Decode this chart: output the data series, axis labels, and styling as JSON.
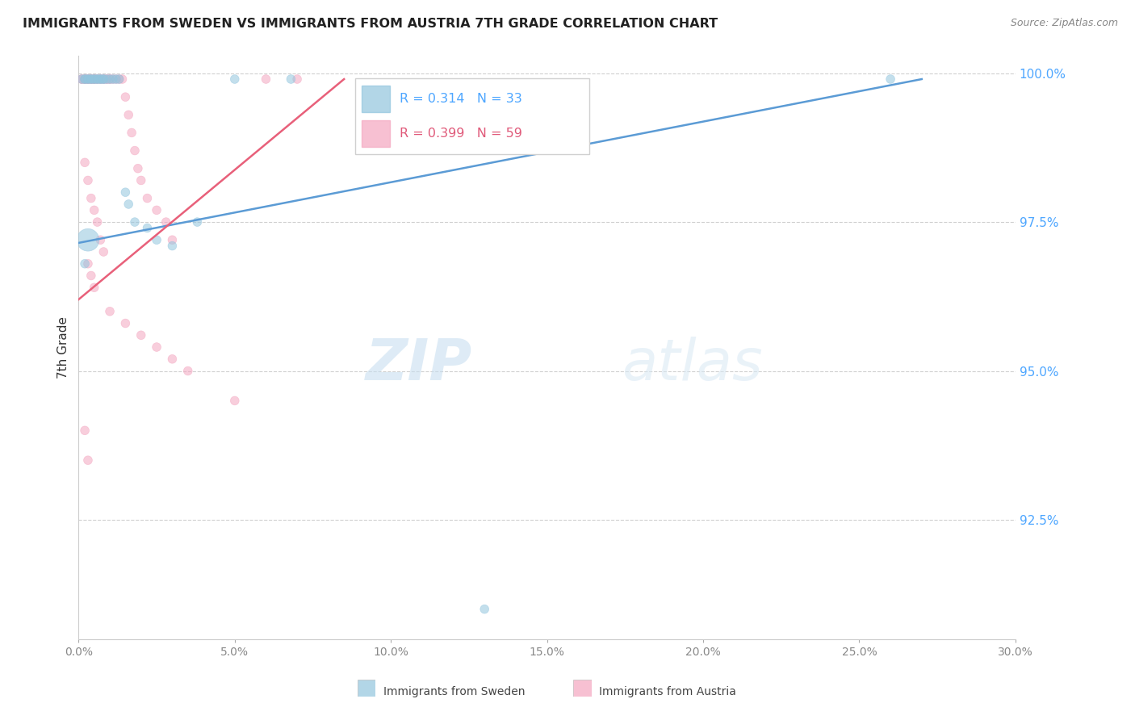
{
  "title": "IMMIGRANTS FROM SWEDEN VS IMMIGRANTS FROM AUSTRIA 7TH GRADE CORRELATION CHART",
  "source": "Source: ZipAtlas.com",
  "ylabel": "7th Grade",
  "legend_sweden": "R = 0.314   N = 33",
  "legend_austria": "R = 0.399   N = 59",
  "sweden_color": "#92c5de",
  "austria_color": "#f4a6c0",
  "trend_sweden_color": "#5b9bd5",
  "trend_austria_color": "#e8607a",
  "background_color": "#ffffff",
  "watermark_zip": "ZIP",
  "watermark_atlas": "atlas",
  "xlim": [
    0.0,
    0.3
  ],
  "ylim": [
    0.905,
    1.003
  ],
  "yticks": [
    1.0,
    0.975,
    0.95,
    0.925
  ],
  "ytick_labels": [
    "100.0%",
    "97.5%",
    "95.0%",
    "92.5%"
  ],
  "xtick_vals": [
    0.0,
    0.05,
    0.1,
    0.15,
    0.2,
    0.25,
    0.3
  ],
  "xtick_labels": [
    "0.0%",
    "5.0%",
    "10.0%",
    "15.0%",
    "20.0%",
    "25.0%",
    "30.0%"
  ],
  "sweden_x": [
    0.001,
    0.002,
    0.002,
    0.003,
    0.003,
    0.004,
    0.004,
    0.005,
    0.005,
    0.006,
    0.006,
    0.007,
    0.007,
    0.008,
    0.008,
    0.009,
    0.01,
    0.011,
    0.012,
    0.013,
    0.015,
    0.016,
    0.018,
    0.022,
    0.025,
    0.03,
    0.038,
    0.05,
    0.068,
    0.002,
    0.003,
    0.26,
    0.13
  ],
  "sweden_y": [
    0.999,
    0.999,
    0.999,
    0.999,
    0.999,
    0.999,
    0.999,
    0.999,
    0.999,
    0.999,
    0.999,
    0.999,
    0.999,
    0.999,
    0.999,
    0.999,
    0.999,
    0.999,
    0.999,
    0.999,
    0.98,
    0.978,
    0.975,
    0.974,
    0.972,
    0.971,
    0.975,
    0.999,
    0.999,
    0.968,
    0.972,
    0.999,
    0.91
  ],
  "sweden_size": [
    60,
    60,
    60,
    60,
    60,
    60,
    60,
    60,
    60,
    60,
    60,
    60,
    60,
    60,
    60,
    60,
    60,
    60,
    60,
    60,
    60,
    60,
    60,
    60,
    60,
    60,
    60,
    60,
    60,
    60,
    60,
    60,
    60
  ],
  "sweden_big_idx": 30,
  "sweden_big_size": 400,
  "austria_x": [
    0.001,
    0.001,
    0.002,
    0.002,
    0.002,
    0.003,
    0.003,
    0.003,
    0.004,
    0.004,
    0.004,
    0.005,
    0.005,
    0.005,
    0.006,
    0.006,
    0.007,
    0.007,
    0.008,
    0.008,
    0.009,
    0.009,
    0.01,
    0.01,
    0.011,
    0.012,
    0.013,
    0.014,
    0.015,
    0.016,
    0.017,
    0.018,
    0.019,
    0.02,
    0.022,
    0.025,
    0.028,
    0.03,
    0.002,
    0.003,
    0.004,
    0.005,
    0.006,
    0.007,
    0.008,
    0.003,
    0.004,
    0.005,
    0.01,
    0.015,
    0.02,
    0.025,
    0.03,
    0.035,
    0.05,
    0.06,
    0.07,
    0.002,
    0.003
  ],
  "austria_y": [
    0.999,
    0.999,
    0.999,
    0.999,
    0.999,
    0.999,
    0.999,
    0.999,
    0.999,
    0.999,
    0.999,
    0.999,
    0.999,
    0.999,
    0.999,
    0.999,
    0.999,
    0.999,
    0.999,
    0.999,
    0.999,
    0.999,
    0.999,
    0.999,
    0.999,
    0.999,
    0.999,
    0.999,
    0.996,
    0.993,
    0.99,
    0.987,
    0.984,
    0.982,
    0.979,
    0.977,
    0.975,
    0.972,
    0.985,
    0.982,
    0.979,
    0.977,
    0.975,
    0.972,
    0.97,
    0.968,
    0.966,
    0.964,
    0.96,
    0.958,
    0.956,
    0.954,
    0.952,
    0.95,
    0.945,
    0.999,
    0.999,
    0.94,
    0.935
  ],
  "austria_size": [
    60,
    60,
    60,
    60,
    60,
    60,
    60,
    60,
    60,
    60,
    60,
    60,
    60,
    60,
    60,
    60,
    60,
    60,
    60,
    60,
    60,
    60,
    60,
    60,
    60,
    60,
    60,
    60,
    60,
    60,
    60,
    60,
    60,
    60,
    60,
    60,
    60,
    60,
    60,
    60,
    60,
    60,
    60,
    60,
    60,
    60,
    60,
    60,
    60,
    60,
    60,
    60,
    60,
    60,
    60,
    60,
    60,
    60,
    60
  ]
}
